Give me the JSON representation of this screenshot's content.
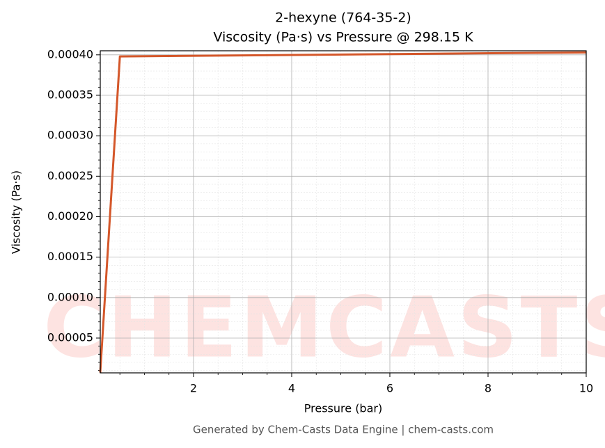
{
  "chart_data": {
    "type": "line",
    "title": "2-hexyne (764-35-2)",
    "subtitle": "Viscosity (Pa·s) vs Pressure @ 298.15 K",
    "x_label": "Pressure (bar)",
    "y_label": "Viscosity (Pa·s)",
    "footer": "Generated by Chem-Casts Data Engine | chem-casts.com",
    "watermark": "CHEMCASTS",
    "x": [
      0.1,
      0.5,
      10
    ],
    "series": [
      {
        "name": "2-hexyne",
        "color": "#d4572a",
        "values": [
          7.5e-06,
          0.000398,
          0.000403
        ]
      }
    ],
    "xlim": [
      0.1,
      10
    ],
    "ylim": [
      7e-06,
      0.000405
    ],
    "xticks": [
      2,
      4,
      6,
      8,
      10
    ],
    "yticks": [
      {
        "value": 5e-05,
        "label": "0.00005"
      },
      {
        "value": 0.0001,
        "label": "0.00010"
      },
      {
        "value": 0.00015,
        "label": "0.00015"
      },
      {
        "value": 0.0002,
        "label": "0.00020"
      },
      {
        "value": 0.00025,
        "label": "0.00025"
      },
      {
        "value": 0.0003,
        "label": "0.00030"
      },
      {
        "value": 0.00035,
        "label": "0.00035"
      },
      {
        "value": 0.0004,
        "label": "0.00040"
      }
    ],
    "xminorticks": [
      0.5,
      1,
      1.5,
      2.5,
      3,
      3.5,
      4.5,
      5,
      5.5,
      6.5,
      7,
      7.5,
      8.5,
      9,
      9.5
    ],
    "yminorticks": [
      1e-05,
      2e-05,
      3e-05,
      4e-05,
      6e-05,
      7e-05,
      8e-05,
      9e-05,
      0.00011,
      0.00012,
      0.00013,
      0.00014,
      0.00016,
      0.00017,
      0.00018,
      0.00019,
      0.00021,
      0.00022,
      0.00023,
      0.00024,
      0.00026,
      0.00027,
      0.00028,
      0.00029,
      0.00031,
      0.00032,
      0.00033,
      0.00034,
      0.00036,
      0.00037,
      0.00038,
      0.00039
    ],
    "grid": true
  }
}
